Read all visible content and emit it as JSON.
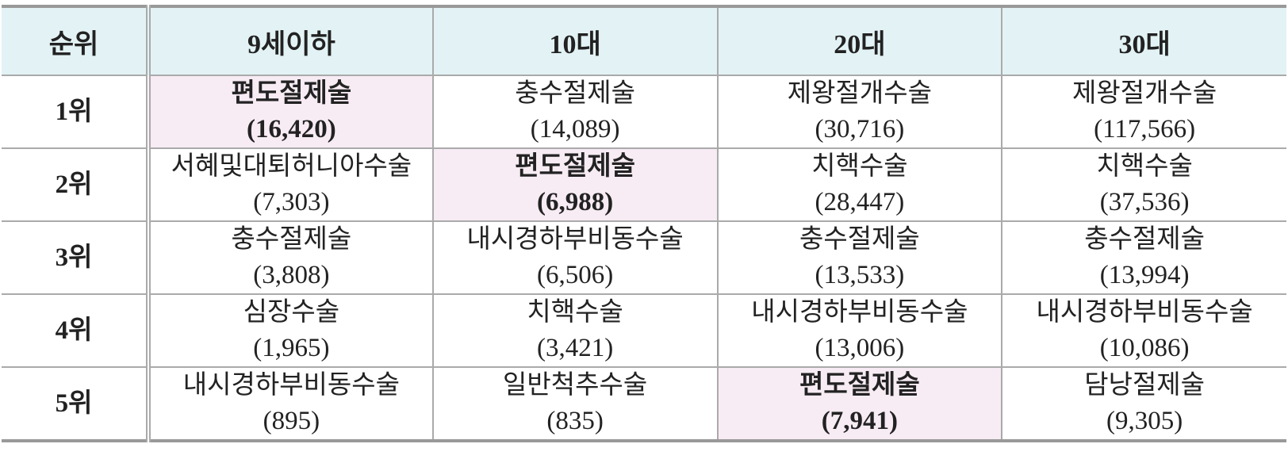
{
  "table": {
    "header": [
      "순위",
      "9세이하",
      "10대",
      "20대",
      "30대"
    ],
    "highlight_color": "#f7ebf4",
    "rows": [
      {
        "rank": "1위",
        "cells": [
          {
            "name": "편도절제술",
            "count": "(16,420)",
            "highlight": true
          },
          {
            "name": "충수절제술",
            "count": "(14,089)"
          },
          {
            "name": "제왕절개수술",
            "count": "(30,716)"
          },
          {
            "name": "제왕절개수술",
            "count": "(117,566)"
          }
        ]
      },
      {
        "rank": "2위",
        "cells": [
          {
            "name": "서혜및대퇴허니아수술",
            "count": "(7,303)"
          },
          {
            "name": "편도절제술",
            "count": "(6,988)",
            "highlight": true
          },
          {
            "name": "치핵수술",
            "count": "(28,447)"
          },
          {
            "name": "치핵수술",
            "count": "(37,536)"
          }
        ]
      },
      {
        "rank": "3위",
        "cells": [
          {
            "name": "충수절제술",
            "count": "(3,808)"
          },
          {
            "name": "내시경하부비동수술",
            "count": "(6,506)"
          },
          {
            "name": "충수절제술",
            "count": "(13,533)"
          },
          {
            "name": "충수절제술",
            "count": "(13,994)"
          }
        ]
      },
      {
        "rank": "4위",
        "cells": [
          {
            "name": "심장수술",
            "count": "(1,965)"
          },
          {
            "name": "치핵수술",
            "count": "(3,421)"
          },
          {
            "name": "내시경하부비동수술",
            "count": "(13,006)"
          },
          {
            "name": "내시경하부비동수술",
            "count": "(10,086)"
          }
        ]
      },
      {
        "rank": "5위",
        "cells": [
          {
            "name": "내시경하부비동수술",
            "count": "(895)"
          },
          {
            "name": "일반척추수술",
            "count": "(835)"
          },
          {
            "name": "편도절제술",
            "count": "(7,941)",
            "highlight": true
          },
          {
            "name": "담낭절제술",
            "count": "(9,305)"
          }
        ]
      }
    ]
  }
}
